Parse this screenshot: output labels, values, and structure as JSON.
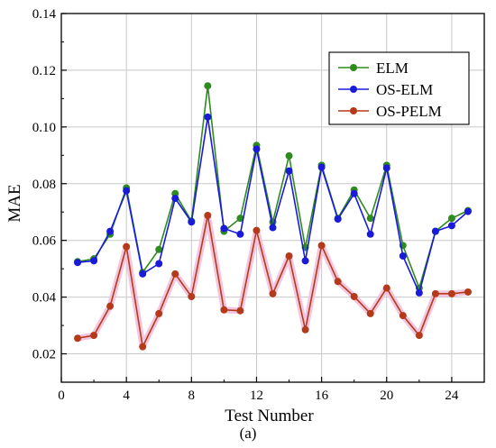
{
  "chart_data": {
    "type": "line",
    "xlabel": "Test Number",
    "ylabel": "MAE",
    "xlim": [
      0,
      26
    ],
    "ylim": [
      0.01,
      0.14
    ],
    "x_ticks": [
      0,
      4,
      8,
      12,
      16,
      20,
      24
    ],
    "y_ticks": [
      0.02,
      0.04,
      0.06,
      0.08,
      0.1,
      0.12,
      0.14
    ],
    "y_tick_labels": [
      "0.02",
      "0.04",
      "0.06",
      "0.08",
      "0.10",
      "0.12",
      "0.14"
    ],
    "grid": true,
    "legend_position": "top-right",
    "x": [
      1,
      2,
      3,
      4,
      5,
      6,
      7,
      8,
      9,
      10,
      11,
      12,
      13,
      14,
      15,
      16,
      17,
      18,
      19,
      20,
      21,
      22,
      23,
      24,
      25
    ],
    "series": [
      {
        "name": "ELM",
        "color": "#2e8b1e",
        "values": [
          0.0525,
          0.0535,
          0.0622,
          0.0785,
          0.0487,
          0.0568,
          0.0765,
          0.0668,
          0.1145,
          0.0632,
          0.0678,
          0.0935,
          0.0665,
          0.0898,
          0.0575,
          0.0865,
          0.0678,
          0.0778,
          0.0678,
          0.0865,
          0.0582,
          0.0432,
          0.0632,
          0.0678,
          0.0705
        ]
      },
      {
        "name": "OS-ELM",
        "color": "#1a1adb",
        "values": [
          0.0522,
          0.0528,
          0.0632,
          0.0775,
          0.0482,
          0.0518,
          0.0748,
          0.0665,
          0.1035,
          0.0642,
          0.0622,
          0.0922,
          0.0645,
          0.0845,
          0.0528,
          0.0858,
          0.0675,
          0.0765,
          0.0622,
          0.0855,
          0.0545,
          0.0415,
          0.0632,
          0.0652,
          0.0702
        ]
      },
      {
        "name": "OS-PELM",
        "color": "#b53a1a",
        "values": [
          0.0255,
          0.0265,
          0.0368,
          0.0578,
          0.0225,
          0.0342,
          0.0482,
          0.0402,
          0.0688,
          0.0355,
          0.0352,
          0.0635,
          0.0412,
          0.0545,
          0.0285,
          0.0582,
          0.0455,
          0.0402,
          0.0342,
          0.0432,
          0.0335,
          0.0265,
          0.0412,
          0.0412,
          0.0418
        ]
      }
    ],
    "caption": "(a)"
  }
}
